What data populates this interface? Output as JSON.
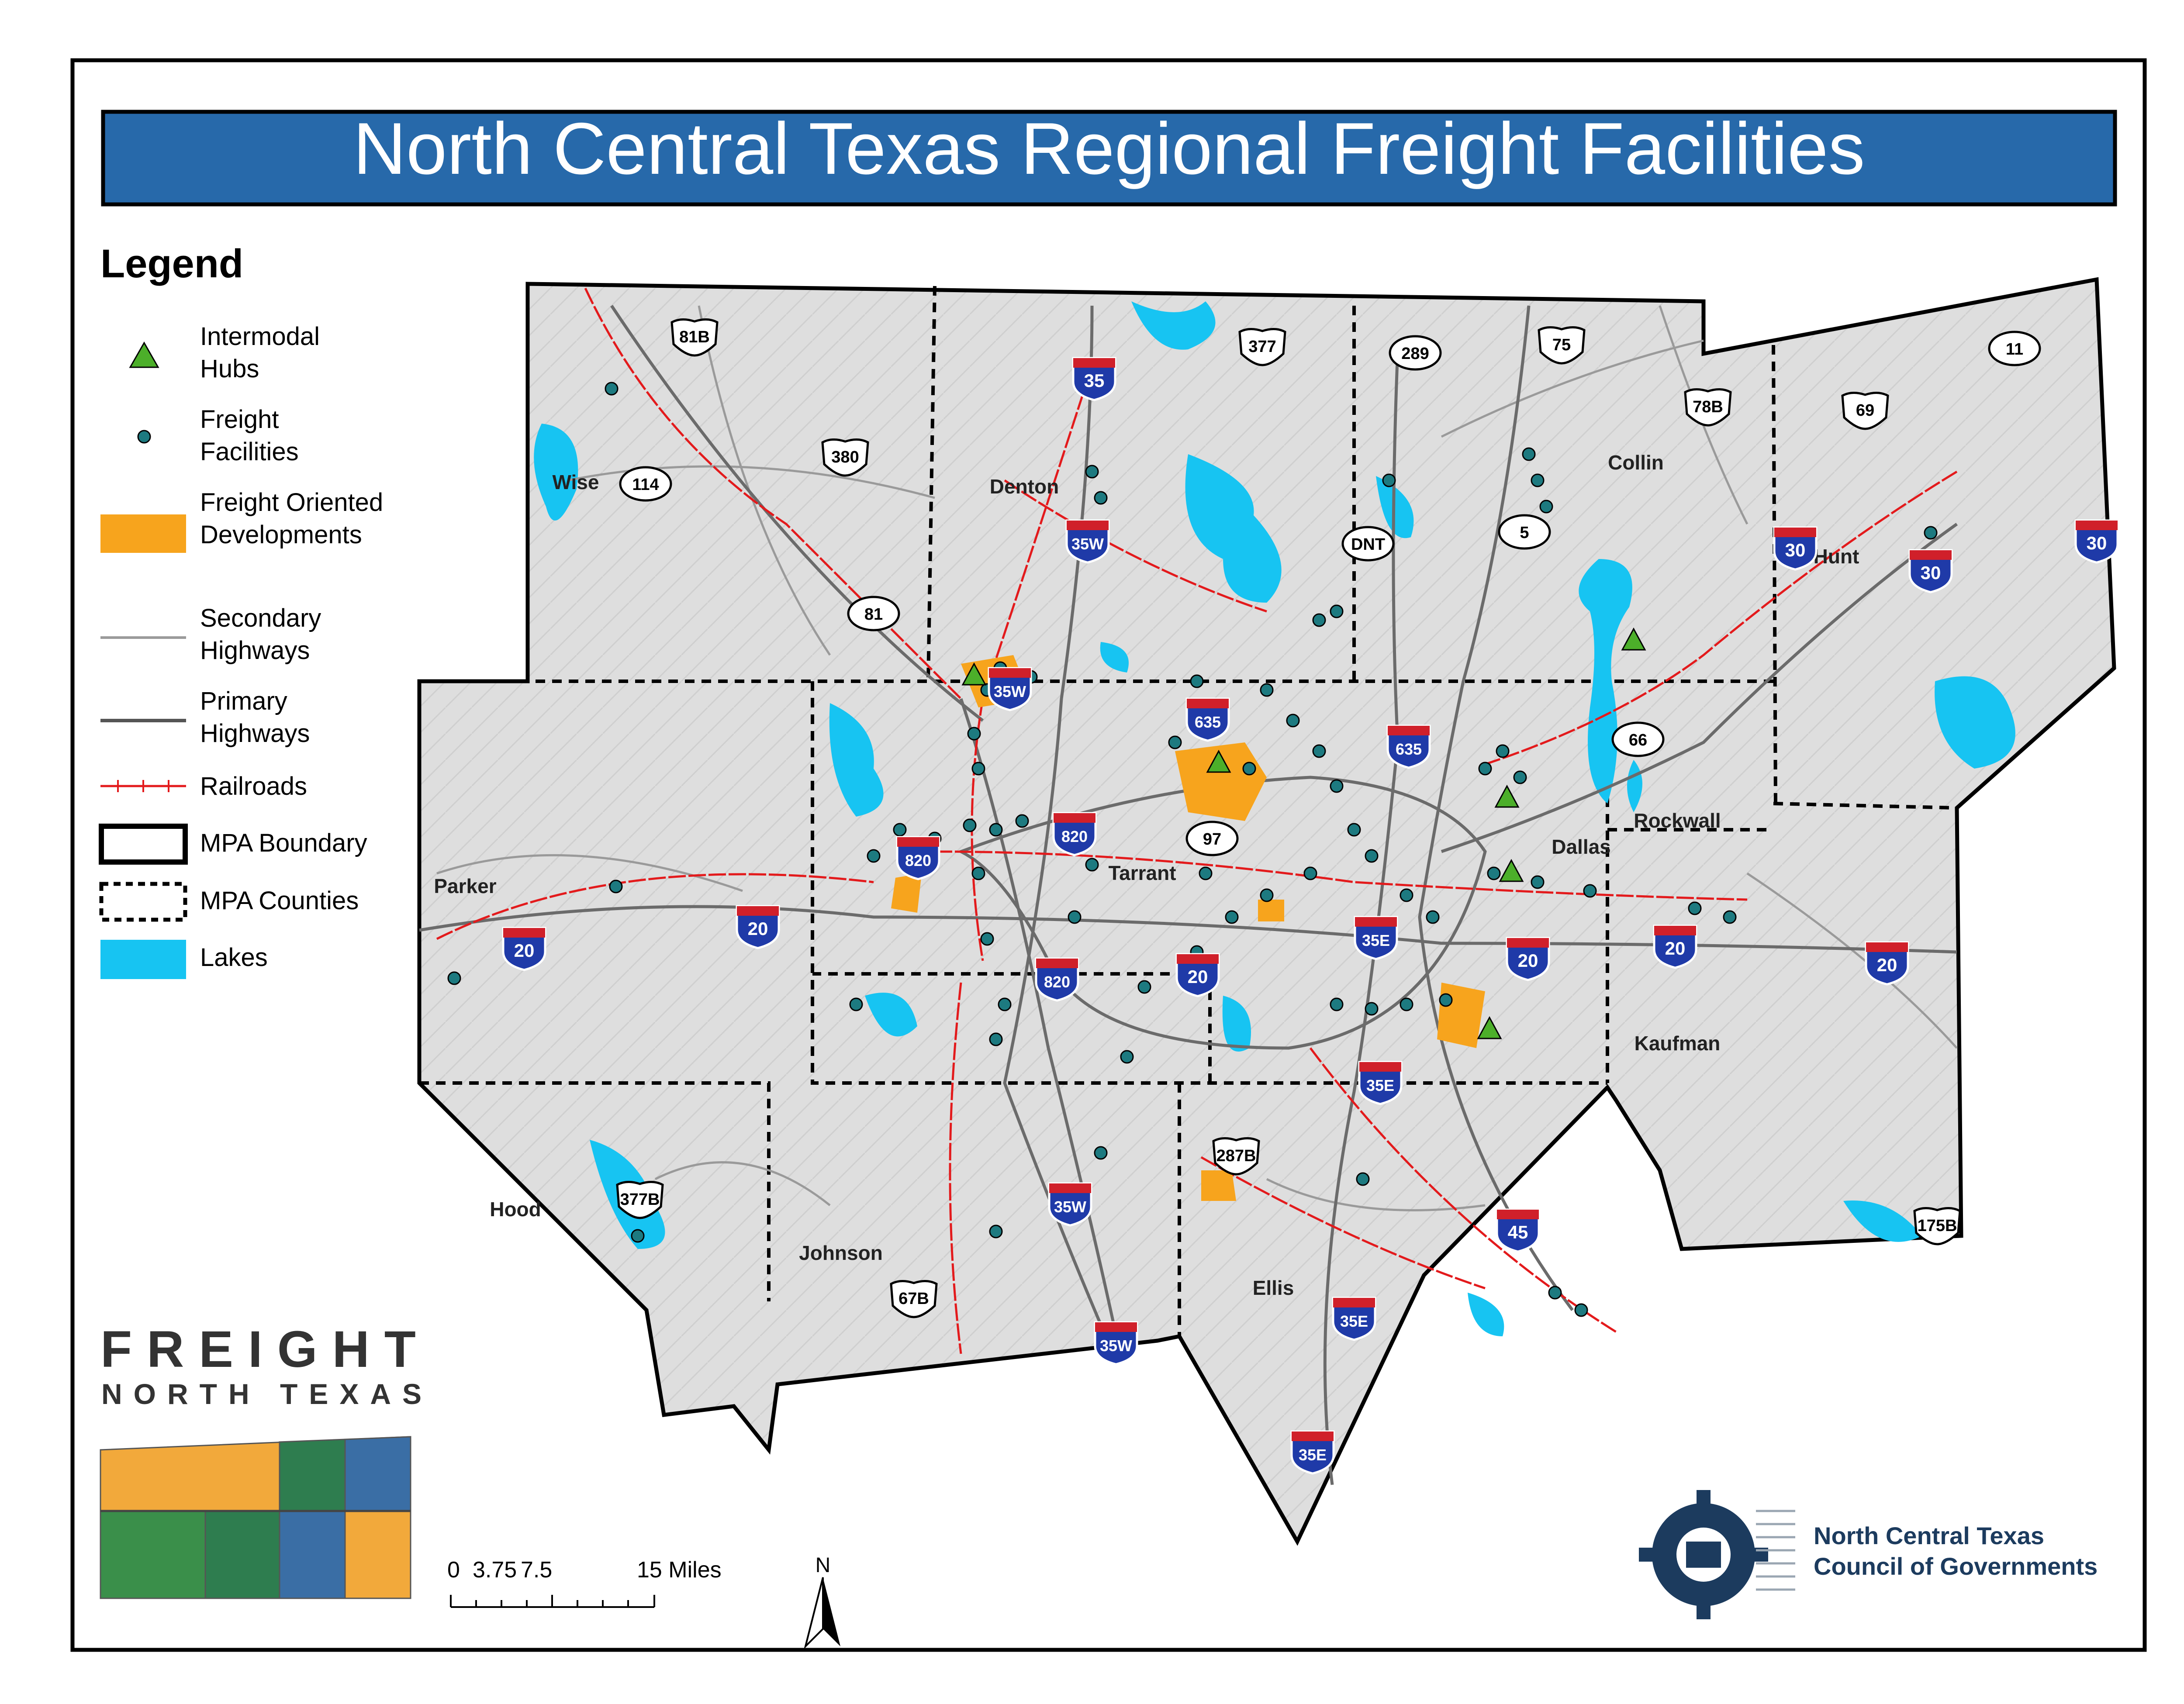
{
  "title": "North Central Texas Regional Freight Facilities",
  "legend": {
    "heading": "Legend",
    "items": [
      {
        "key": "hubs",
        "label_lines": [
          "Intermodal",
          "Hubs"
        ]
      },
      {
        "key": "facilities",
        "label_lines": [
          "Freight",
          "Facilities"
        ]
      },
      {
        "key": "fod",
        "label_lines": [
          "Freight Oriented",
          "Developments"
        ]
      },
      {
        "key": "secondary",
        "label_lines": [
          "Secondary",
          "Highways"
        ]
      },
      {
        "key": "primary",
        "label_lines": [
          "Primary",
          "Highways"
        ]
      },
      {
        "key": "railroads",
        "label_lines": [
          "Railroads"
        ]
      },
      {
        "key": "mpa_boundary",
        "label_lines": [
          "MPA Boundary"
        ]
      },
      {
        "key": "mpa_counties",
        "label_lines": [
          "MPA Counties"
        ]
      },
      {
        "key": "lakes",
        "label_lines": [
          "Lakes"
        ]
      }
    ]
  },
  "colors": {
    "title_bar": "#2769aa",
    "hub": "#4caf2a",
    "facility": "#1d7a80",
    "fod": "#f7a41d",
    "lake": "#17c4f2",
    "rail": "#e31a1c",
    "interstate_blue": "#1f3aa8",
    "interstate_red": "#d0202a",
    "county_fill": "#dcdcdc"
  },
  "counties": [
    "Wise",
    "Denton",
    "Collin",
    "Hunt",
    "Parker",
    "Tarrant",
    "Dallas",
    "Rockwall",
    "Kaufman",
    "Hood",
    "Johnson",
    "Ellis"
  ],
  "highway_shields": {
    "interstate": [
      "35",
      "35W",
      "35W",
      "635",
      "635",
      "820",
      "820",
      "820",
      "20",
      "20",
      "20",
      "20",
      "20",
      "20",
      "35E",
      "35E",
      "35E",
      "35E",
      "35W",
      "35W",
      "45",
      "30",
      "30",
      "30"
    ],
    "us": [
      "81B",
      "377",
      "75",
      "380",
      "69",
      "78B",
      "287B",
      "377B",
      "67B",
      "175B"
    ],
    "state": [
      "289",
      "11",
      "114",
      "81",
      "DNT",
      "5",
      "66",
      "97"
    ]
  },
  "branding": {
    "freight_line1": "FREIGHT",
    "freight_line2": "NORTH TEXAS",
    "nctcog_line1": "North Central Texas",
    "nctcog_line2": "Council of Governments"
  },
  "scale_bar": {
    "labels": [
      "0",
      "3.75",
      "7.5",
      "15 Miles"
    ]
  },
  "north_arrow": "N"
}
